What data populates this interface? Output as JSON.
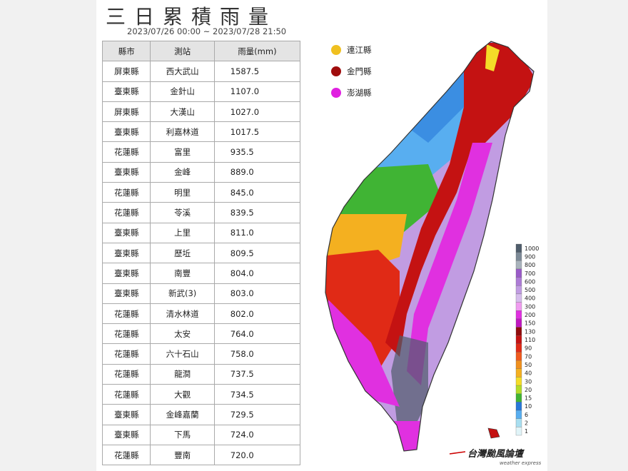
{
  "title": "三日累積雨量",
  "subtitle": "2023/07/26 00:00 ~ 2023/07/28 21:50",
  "table": {
    "header": [
      "縣市",
      "測站",
      "雨量(mm)"
    ],
    "rows": [
      [
        "屏東縣",
        "西大武山",
        "1587.5"
      ],
      [
        "臺東縣",
        "金針山",
        "1107.0"
      ],
      [
        "屏東縣",
        "大漢山",
        "1027.0"
      ],
      [
        "臺東縣",
        "利嘉林道",
        "1017.5"
      ],
      [
        "花蓮縣",
        "富里",
        "935.5"
      ],
      [
        "臺東縣",
        "金峰",
        "889.0"
      ],
      [
        "花蓮縣",
        "明里",
        "845.0"
      ],
      [
        "花蓮縣",
        "苓溪",
        "839.5"
      ],
      [
        "臺東縣",
        "上里",
        "811.0"
      ],
      [
        "臺東縣",
        "歷坵",
        "809.5"
      ],
      [
        "臺東縣",
        "南豐",
        "804.0"
      ],
      [
        "臺東縣",
        "新武(3)",
        "803.0"
      ],
      [
        "花蓮縣",
        "清水林道",
        "802.0"
      ],
      [
        "花蓮縣",
        "太安",
        "764.0"
      ],
      [
        "花蓮縣",
        "六十石山",
        "758.0"
      ],
      [
        "花蓮縣",
        "龍澗",
        "737.5"
      ],
      [
        "花蓮縣",
        "大觀",
        "734.5"
      ],
      [
        "臺東縣",
        "金峰嘉蘭",
        "729.5"
      ],
      [
        "臺東縣",
        "下馬",
        "724.0"
      ],
      [
        "花蓮縣",
        "豐南",
        "720.0"
      ]
    ]
  },
  "islands": [
    {
      "name": "連江縣",
      "color": "#f0c020"
    },
    {
      "name": "金門縣",
      "color": "#a00d0d"
    },
    {
      "name": "澎湖縣",
      "color": "#e020e0"
    }
  ],
  "colorbar": {
    "labels": [
      "1000",
      "900",
      "800",
      "700",
      "600",
      "500",
      "400",
      "300",
      "200",
      "150",
      "130",
      "110",
      "90",
      "70",
      "50",
      "40",
      "30",
      "20",
      "15",
      "10",
      "6",
      "2",
      "1"
    ],
    "colors": [
      "#4f5d6b",
      "#7d8a97",
      "#a9b3bc",
      "#9a5bc8",
      "#ad7bd6",
      "#c19ce2",
      "#d6bdec",
      "#f09cf0",
      "#e030e0",
      "#c018c0",
      "#900c0c",
      "#c41212",
      "#e02a16",
      "#f05a1e",
      "#f0901e",
      "#f4b020",
      "#f4dc28",
      "#b4dc28",
      "#40b434",
      "#2878d8",
      "#58aef0",
      "#a8def0",
      "#e0f4f8"
    ]
  },
  "logo": {
    "main": "台灣颱風論壇",
    "sub": "weather express"
  }
}
